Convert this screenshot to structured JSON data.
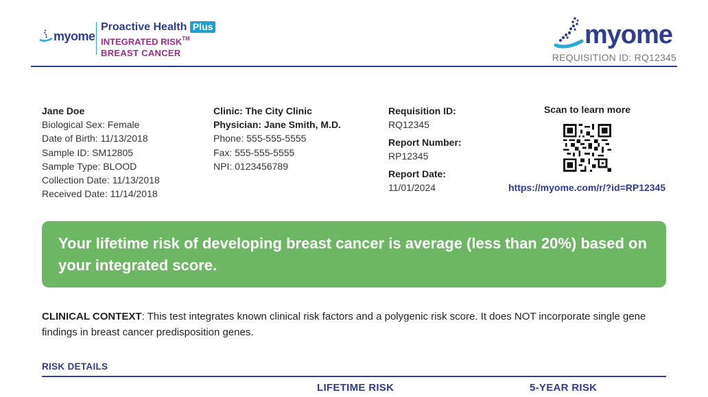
{
  "header": {
    "small_logo_text": "myome",
    "product_name": "Proactive Health",
    "product_badge": "Plus",
    "product_line": "INTEGRATED RISK",
    "product_tm": "TM",
    "product_sub": "BREAST CANCER",
    "big_logo_text": "myome",
    "requisition_top": "REQUISITION ID: RQ12345"
  },
  "patient": {
    "name": "Jane Doe",
    "sex": "Biological Sex: Female",
    "dob": "Date of Birth: 11/13/2018",
    "sample_id": "Sample ID: SM12805",
    "sample_type": "Sample Type: BLOOD",
    "collection_date": "Collection Date: 11/13/2018",
    "received_date": "Received Date: 11/14/2018"
  },
  "clinic": {
    "clinic": "Clinic: The City Clinic",
    "physician": "Physician: Jane Smith, M.D.",
    "phone": "Phone: 555-555-5555",
    "fax": "Fax: 555-555-5555",
    "npi": "NPI: 0123456789"
  },
  "report": {
    "requisition_label": "Requisition ID:",
    "requisition_value": "RQ12345",
    "report_number_label": "Report Number:",
    "report_number_value": "RP12345",
    "report_date_label": "Report Date:",
    "report_date_value": "11/01/2024"
  },
  "qr": {
    "label": "Scan to learn more",
    "url": "https://myome.com/r/?id=RP12345"
  },
  "banner": {
    "text": "Your lifetime risk of developing breast cancer is average (less than 20%) based on your integrated score.",
    "color": "#6db663"
  },
  "context": {
    "label": "CLINICAL CONTEXT",
    "text": ": This test integrates known clinical risk factors and a polygenic risk score. It does NOT incorporate single gene findings in breast cancer predisposition genes."
  },
  "risk": {
    "section_title": "RISK DETAILS",
    "col_lifetime": "LIFETIME RISK",
    "col_5year": "5-YEAR RISK"
  },
  "colors": {
    "brand_navy": "#2e3d8f",
    "brand_blue": "#29a8dc",
    "brand_magenta": "#a0298c"
  }
}
